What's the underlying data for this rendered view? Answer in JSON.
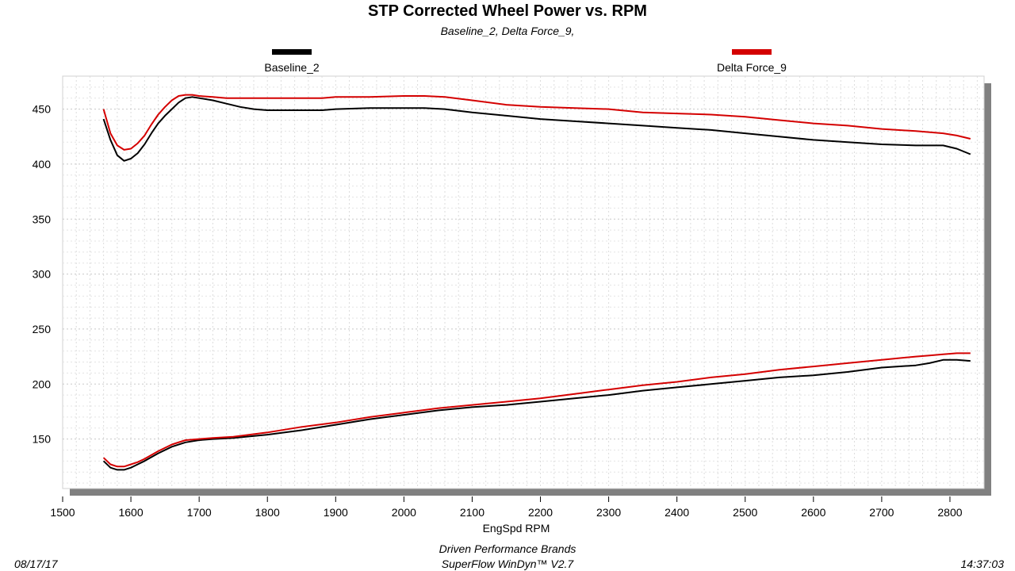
{
  "chart_data": {
    "type": "line",
    "title": "STP Corrected Wheel Power vs. RPM",
    "subtitle": "Baseline_2, Delta Force_9,",
    "xlabel": "EngSpd  RPM",
    "ylabel": "",
    "xlim": [
      1500,
      2850
    ],
    "ylim": [
      105,
      480
    ],
    "x_ticks": [
      1500,
      1600,
      1700,
      1800,
      1900,
      2000,
      2100,
      2200,
      2300,
      2400,
      2500,
      2600,
      2700,
      2800
    ],
    "y_ticks": [
      150,
      200,
      250,
      300,
      350,
      400,
      450
    ],
    "grid": true,
    "legend_position": "top",
    "series": [
      {
        "name": "Baseline_2",
        "color": "#000000",
        "legend": true,
        "x": [
          1560,
          1570,
          1580,
          1590,
          1600,
          1610,
          1620,
          1630,
          1640,
          1650,
          1660,
          1670,
          1680,
          1690,
          1700,
          1720,
          1740,
          1760,
          1780,
          1800,
          1820,
          1850,
          1880,
          1900,
          1950,
          2000,
          2030,
          2060,
          2100,
          2150,
          2200,
          2250,
          2300,
          2350,
          2400,
          2450,
          2500,
          2550,
          2600,
          2650,
          2700,
          2750,
          2790,
          2810,
          2830
        ],
        "y": [
          441,
          422,
          408,
          403,
          405,
          410,
          418,
          428,
          437,
          444,
          450,
          456,
          460,
          461,
          460,
          458,
          455,
          452,
          450,
          449,
          449,
          449,
          449,
          450,
          451,
          451,
          451,
          450,
          447,
          444,
          441,
          439,
          437,
          435,
          433,
          431,
          428,
          425,
          422,
          420,
          418,
          417,
          417,
          414,
          409
        ]
      },
      {
        "name": "Delta Force_9",
        "color": "#d40000",
        "legend": true,
        "x": [
          1560,
          1570,
          1580,
          1590,
          1600,
          1610,
          1620,
          1630,
          1640,
          1650,
          1660,
          1670,
          1680,
          1690,
          1700,
          1720,
          1740,
          1760,
          1780,
          1800,
          1820,
          1850,
          1880,
          1900,
          1950,
          2000,
          2030,
          2060,
          2100,
          2150,
          2200,
          2250,
          2300,
          2350,
          2400,
          2450,
          2500,
          2550,
          2600,
          2650,
          2700,
          2750,
          2790,
          2810,
          2830
        ],
        "y": [
          450,
          428,
          417,
          413,
          414,
          419,
          426,
          436,
          445,
          452,
          458,
          462,
          463,
          463,
          462,
          461,
          460,
          460,
          460,
          460,
          460,
          460,
          460,
          461,
          461,
          462,
          462,
          461,
          458,
          454,
          452,
          451,
          450,
          447,
          446,
          445,
          443,
          440,
          437,
          435,
          432,
          430,
          428,
          426,
          423
        ]
      },
      {
        "name": "Baseline_2 (lower)",
        "color": "#000000",
        "legend": false,
        "x": [
          1560,
          1570,
          1580,
          1590,
          1600,
          1610,
          1620,
          1640,
          1660,
          1680,
          1700,
          1720,
          1750,
          1800,
          1850,
          1900,
          1950,
          2000,
          2050,
          2100,
          2150,
          2200,
          2250,
          2300,
          2350,
          2400,
          2450,
          2500,
          2550,
          2600,
          2650,
          2700,
          2750,
          2770,
          2790,
          2810,
          2830
        ],
        "y": [
          130,
          124,
          122,
          122,
          124,
          127,
          130,
          137,
          143,
          147,
          149,
          150,
          151,
          154,
          158,
          163,
          168,
          172,
          176,
          179,
          181,
          184,
          187,
          190,
          194,
          197,
          200,
          203,
          206,
          208,
          211,
          215,
          217,
          219,
          222,
          222,
          221
        ]
      },
      {
        "name": "Delta Force_9 (lower)",
        "color": "#d40000",
        "legend": false,
        "x": [
          1560,
          1570,
          1580,
          1590,
          1600,
          1610,
          1620,
          1640,
          1660,
          1680,
          1700,
          1720,
          1750,
          1800,
          1850,
          1900,
          1950,
          2000,
          2050,
          2100,
          2150,
          2200,
          2250,
          2300,
          2350,
          2400,
          2450,
          2500,
          2550,
          2600,
          2650,
          2700,
          2750,
          2770,
          2790,
          2810,
          2830
        ],
        "y": [
          133,
          127,
          125,
          125,
          127,
          129,
          132,
          139,
          145,
          149,
          150,
          151,
          152,
          156,
          161,
          165,
          170,
          174,
          178,
          181,
          184,
          187,
          191,
          195,
          199,
          202,
          206,
          209,
          213,
          216,
          219,
          222,
          225,
          226,
          227,
          228,
          228
        ]
      }
    ]
  },
  "footer": {
    "date": "08/17/17",
    "time": "14:37:03",
    "company": "Driven Performance Brands",
    "software": "SuperFlow WinDyn™  V2.7"
  }
}
